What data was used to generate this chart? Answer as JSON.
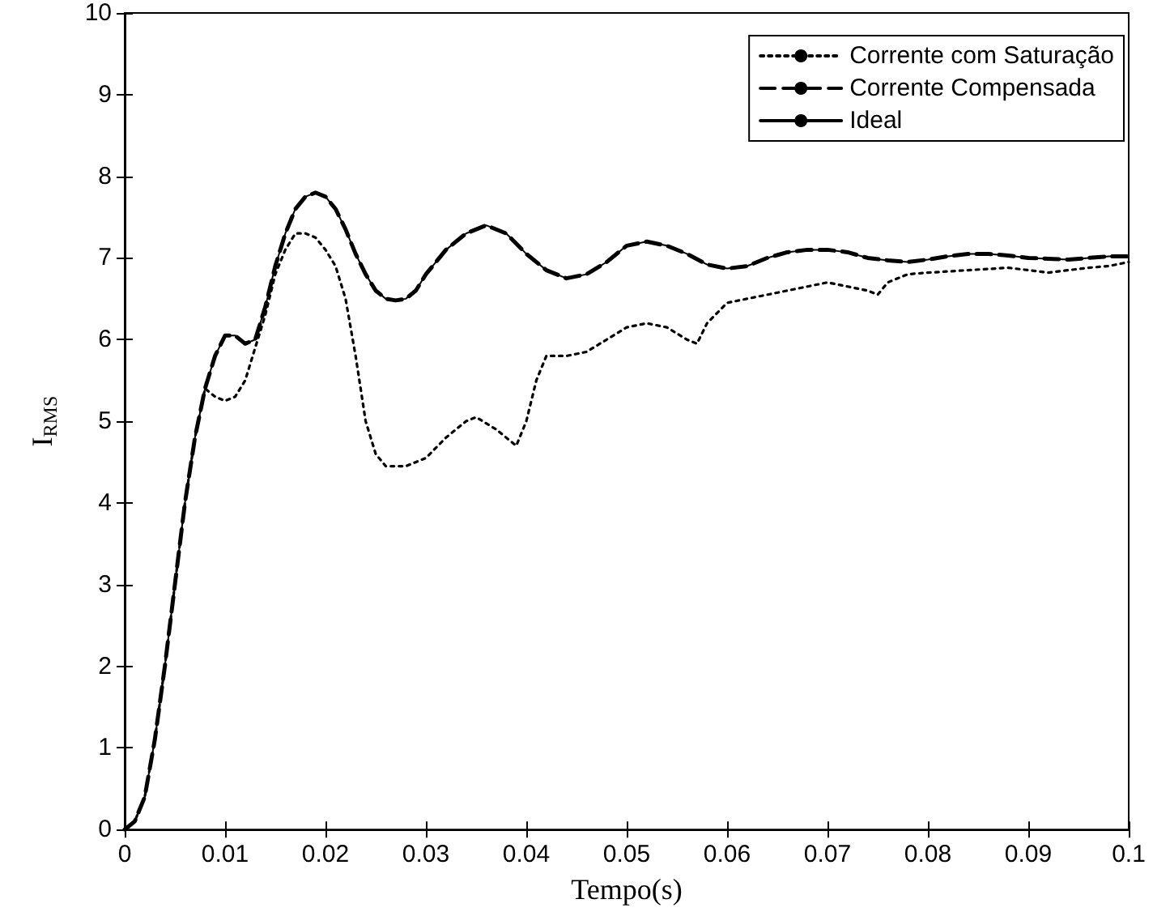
{
  "chart_data": {
    "type": "line",
    "xlabel": "Tempo(s)",
    "ylabel": "I$_{RMS}$",
    "xlim": [
      0,
      0.1
    ],
    "ylim": [
      0,
      10
    ],
    "xticks": [
      0,
      0.01,
      0.02,
      0.03,
      0.04,
      0.05,
      0.06,
      0.07,
      0.08,
      0.09,
      0.1
    ],
    "yticks": [
      0,
      1,
      2,
      3,
      4,
      5,
      6,
      7,
      8,
      9,
      10
    ],
    "grid": false,
    "legend": "top right",
    "marker": "none",
    "series": [
      {
        "name": "Corrente com Saturação",
        "color": "#000000",
        "line_style": "dotted",
        "x": [
          0,
          0.001,
          0.002,
          0.003,
          0.004,
          0.005,
          0.006,
          0.007,
          0.008,
          0.009,
          0.01,
          0.011,
          0.012,
          0.013,
          0.014,
          0.015,
          0.016,
          0.017,
          0.018,
          0.019,
          0.02,
          0.021,
          0.022,
          0.023,
          0.024,
          0.025,
          0.026,
          0.028,
          0.03,
          0.032,
          0.034,
          0.035,
          0.037,
          0.039,
          0.04,
          0.041,
          0.042,
          0.044,
          0.046,
          0.048,
          0.05,
          0.052,
          0.054,
          0.056,
          0.057,
          0.058,
          0.06,
          0.062,
          0.064,
          0.066,
          0.068,
          0.07,
          0.072,
          0.074,
          0.075,
          0.076,
          0.078,
          0.08,
          0.084,
          0.088,
          0.09,
          0.092,
          0.094,
          0.096,
          0.098,
          0.1
        ],
        "values": [
          0,
          0.1,
          0.4,
          1.1,
          2.0,
          3.0,
          4.0,
          4.8,
          5.4,
          5.3,
          5.25,
          5.3,
          5.5,
          5.9,
          6.3,
          6.8,
          7.1,
          7.3,
          7.3,
          7.25,
          7.1,
          6.9,
          6.5,
          5.8,
          5.0,
          4.6,
          4.45,
          4.45,
          4.55,
          4.8,
          5.0,
          5.05,
          4.9,
          4.7,
          5.0,
          5.5,
          5.8,
          5.8,
          5.85,
          6.0,
          6.15,
          6.2,
          6.15,
          6.0,
          5.95,
          6.2,
          6.45,
          6.5,
          6.55,
          6.6,
          6.65,
          6.7,
          6.65,
          6.6,
          6.55,
          6.7,
          6.8,
          6.82,
          6.85,
          6.88,
          6.85,
          6.82,
          6.85,
          6.88,
          6.9,
          6.95
        ]
      },
      {
        "name": "Corrente Compensada",
        "color": "#000000",
        "line_style": "dashed",
        "x": [
          0,
          0.001,
          0.002,
          0.003,
          0.004,
          0.005,
          0.006,
          0.007,
          0.008,
          0.009,
          0.01,
          0.011,
          0.012,
          0.013,
          0.014,
          0.015,
          0.016,
          0.017,
          0.018,
          0.019,
          0.02,
          0.021,
          0.022,
          0.023,
          0.024,
          0.025,
          0.026,
          0.027,
          0.028,
          0.029,
          0.03,
          0.032,
          0.034,
          0.036,
          0.038,
          0.04,
          0.042,
          0.044,
          0.046,
          0.048,
          0.05,
          0.052,
          0.054,
          0.056,
          0.058,
          0.06,
          0.062,
          0.064,
          0.066,
          0.068,
          0.07,
          0.072,
          0.074,
          0.076,
          0.078,
          0.08,
          0.082,
          0.084,
          0.086,
          0.088,
          0.09,
          0.092,
          0.094,
          0.096,
          0.098,
          0.1
        ],
        "values": [
          0,
          0.1,
          0.4,
          1.1,
          2.0,
          3.0,
          4.0,
          4.8,
          5.4,
          5.8,
          6.05,
          6.05,
          5.95,
          6.0,
          6.4,
          6.9,
          7.3,
          7.6,
          7.75,
          7.8,
          7.75,
          7.6,
          7.35,
          7.05,
          6.8,
          6.6,
          6.5,
          6.48,
          6.5,
          6.6,
          6.8,
          7.1,
          7.3,
          7.4,
          7.3,
          7.05,
          6.85,
          6.75,
          6.8,
          6.95,
          7.15,
          7.2,
          7.15,
          7.05,
          6.92,
          6.87,
          6.9,
          7.0,
          7.07,
          7.1,
          7.1,
          7.07,
          7.0,
          6.97,
          6.95,
          6.98,
          7.02,
          7.05,
          7.05,
          7.03,
          7.0,
          6.99,
          6.98,
          7.0,
          7.02,
          7.02
        ]
      },
      {
        "name": "Ideal",
        "color": "#000000",
        "line_style": "solid",
        "x": [
          0,
          0.001,
          0.002,
          0.003,
          0.004,
          0.005,
          0.006,
          0.007,
          0.008,
          0.009,
          0.01,
          0.011,
          0.012,
          0.013,
          0.014,
          0.015,
          0.016,
          0.017,
          0.018,
          0.019,
          0.02,
          0.021,
          0.022,
          0.023,
          0.024,
          0.025,
          0.026,
          0.027,
          0.028,
          0.029,
          0.03,
          0.032,
          0.034,
          0.036,
          0.038,
          0.04,
          0.042,
          0.044,
          0.046,
          0.048,
          0.05,
          0.052,
          0.054,
          0.056,
          0.058,
          0.06,
          0.062,
          0.064,
          0.066,
          0.068,
          0.07,
          0.072,
          0.074,
          0.076,
          0.078,
          0.08,
          0.082,
          0.084,
          0.086,
          0.088,
          0.09,
          0.092,
          0.094,
          0.096,
          0.098,
          0.1
        ],
        "values": [
          0,
          0.1,
          0.4,
          1.1,
          2.0,
          3.0,
          4.0,
          4.8,
          5.4,
          5.8,
          6.05,
          6.05,
          5.95,
          6.0,
          6.4,
          6.9,
          7.3,
          7.6,
          7.75,
          7.8,
          7.75,
          7.6,
          7.35,
          7.05,
          6.8,
          6.6,
          6.5,
          6.48,
          6.5,
          6.6,
          6.8,
          7.1,
          7.3,
          7.4,
          7.3,
          7.05,
          6.85,
          6.75,
          6.8,
          6.95,
          7.15,
          7.2,
          7.15,
          7.05,
          6.92,
          6.87,
          6.9,
          7.0,
          7.07,
          7.1,
          7.1,
          7.07,
          7.0,
          6.97,
          6.95,
          6.98,
          7.02,
          7.05,
          7.05,
          7.03,
          7.0,
          6.99,
          6.98,
          7.0,
          7.02,
          7.02
        ]
      }
    ]
  }
}
